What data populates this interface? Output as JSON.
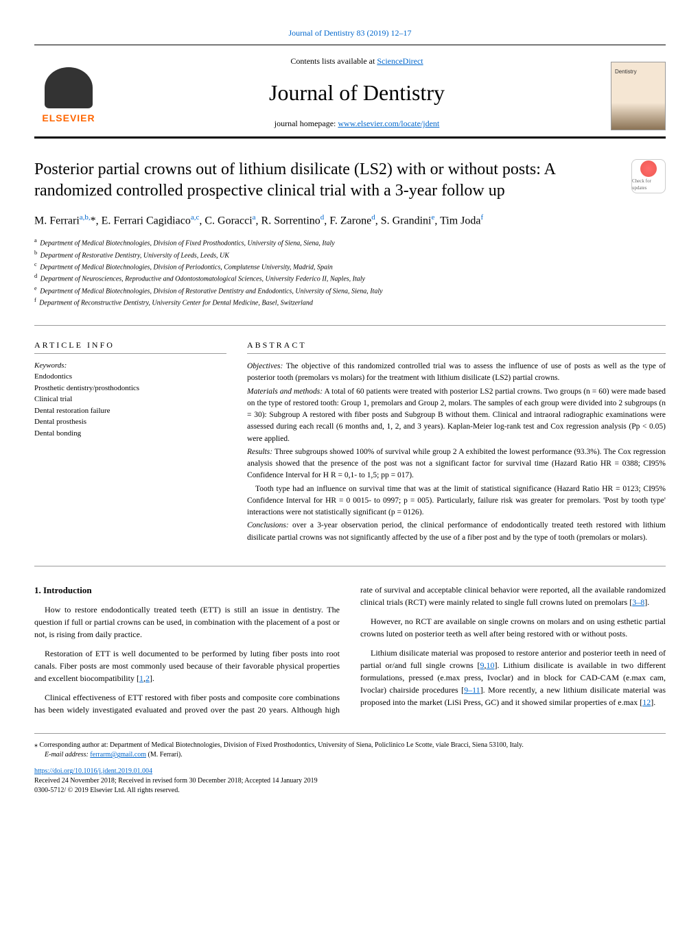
{
  "journal_ref": "Journal of Dentistry 83 (2019) 12–17",
  "header": {
    "contents_prefix": "Contents lists available at ",
    "contents_link": "ScienceDirect",
    "journal_name": "Journal of Dentistry",
    "homepage_prefix": "journal homepage: ",
    "homepage_link": "www.elsevier.com/locate/jdent",
    "publisher": "ELSEVIER"
  },
  "title": "Posterior partial crowns out of lithium disilicate (LS2) with or without posts: A randomized controlled prospective clinical trial with a 3-year follow up",
  "check_updates": "Check for updates",
  "authors_html": "M. Ferrari<sup>a,b,</sup>*, E. Ferrari Cagidiaco<sup>a,c</sup>, C. Goracci<sup>a</sup>, R. Sorrentino<sup>d</sup>, F. Zarone<sup>d</sup>, S. Grandini<sup>e</sup>, Tim Joda<sup>f</sup>",
  "affiliations": [
    "a Department of Medical Biotechnologies, Division of Fixed Prosthodontics, University of Siena, Siena, Italy",
    "b Department of Restorative Dentistry, University of Leeds, Leeds, UK",
    "c Department of Medical Biotechnologies, Division of Periodontics, Complutense University, Madrid, Spain",
    "d Department of Neurosciences, Reproductive and Odontostomatological Sciences, University Federico II, Naples, Italy",
    "e Department of Medical Biotechnologies, Division of Restorative Dentistry and Endodontics, University of Siena, Siena, Italy",
    "f Department of Reconstructive Dentistry, University Center for Dental Medicine, Basel, Switzerland"
  ],
  "article_info": {
    "heading": "ARTICLE INFO",
    "keywords_label": "Keywords:",
    "keywords": [
      "Endodontics",
      "Prosthetic dentistry/prosthodontics",
      "Clinical trial",
      "Dental restoration failure",
      "Dental prosthesis",
      "Dental bonding"
    ]
  },
  "abstract": {
    "heading": "ABSTRACT",
    "objectives_label": "Objectives:",
    "objectives": " The objective of this randomized controlled trial was to assess the influence of use of posts as well as the type of posterior tooth (premolars vs molars) for the treatment with lithium disilicate (LS2) partial crowns.",
    "methods_label": "Materials and methods:",
    "methods": " A total of 60 patients were treated with posterior LS2 partial crowns. Two groups (n = 60) were made based on the type of restored tooth: Group 1, premolars and Group 2, molars. The samples of each group were divided into 2 subgroups (n = 30): Subgroup A restored with fiber posts and Subgroup B without them. Clinical and intraoral radiographic examinations were assessed during each recall (6 months and, 1, 2, and 3 years). Kaplan-Meier log-rank test and Cox regression analysis (Pp < 0.05) were applied.",
    "results_label": "Results:",
    "results1": " Three subgroups showed 100% of survival while group 2 A exhibited the lowest performance (93.3%). The Cox regression analysis showed that the presence of the post was not a significant factor for survival time (Hazard Ratio HR = 0388; CI95% Confidence Interval for H R = 0,1- to 1,5; pp = 017).",
    "results2": "Tooth type had an influence on survival time that was at the limit of statistical significance (Hazard Ratio HR = 0123; CI95% Confidence Interval for HR = 0 0015- to 0997; p = 005). Particularly, failure risk was greater for premolars. 'Post by tooth type' interactions were not statistically significant (p = 0126).",
    "conclusions_label": "Conclusions:",
    "conclusions": " over a 3-year observation period, the clinical performance of endodontically treated teeth restored with lithium disilicate partial crowns was not significantly affected by the use of a fiber post and by the type of tooth (premolars or molars)."
  },
  "intro": {
    "heading": "1. Introduction",
    "p1": "How to restore endodontically treated teeth (ETT) is still an issue in dentistry. The question if full or partial crowns can be used, in combination with the placement of a post or not, is rising from daily practice.",
    "p2_a": "Restoration of ETT is well documented to be performed by luting fiber posts into root canals. Fiber posts are most commonly used because of their favorable physical properties and excellent biocompatibility [",
    "p2_ref1": "1",
    "p2_ref2": "2",
    "p2_b": "].",
    "p3_a": "Clinical effectiveness of ETT restored with fiber posts and composite core combinations has been widely investigated evaluated and proved over the past 20 years. Although high rate of survival and acceptable clinical behavior were reported, all the available randomized clinical trials (RCT) were mainly related to single full crowns luted on premolars [",
    "p3_ref": "3–8",
    "p3_b": "].",
    "p4": "However, no RCT are available on single crowns on molars and on using esthetic partial crowns luted on posterior teeth as well after being restored with or without posts.",
    "p5_a": "Lithium disilicate material was proposed to restore anterior and posterior teeth in need of partial or/and full single crowns [",
    "p5_ref1": "9",
    "p5_ref2": "10",
    "p5_b": "]. Lithium disilicate is available in two different formulations, pressed (e.max press, Ivoclar) and in block for CAD-CAM (e.max cam, Ivoclar) chairside procedures [",
    "p5_ref3": "9–11",
    "p5_c": "]. More recently, a new lithium disilicate material was proposed into the market (LiSi Press, GC) and it showed similar properties of e.max [",
    "p5_ref4": "12",
    "p5_d": "]."
  },
  "footer": {
    "corresponding": "⁎ Corresponding author at: Department of Medical Biotechnologies, Division of Fixed Prosthodontics, University of Siena, Policlinico Le Scotte, viale Bracci, Siena 53100, Italy.",
    "email_label": "E-mail address: ",
    "email": "ferrarm@gmail.com",
    "email_suffix": " (M. Ferrari).",
    "doi": "https://doi.org/10.1016/j.jdent.2019.01.004",
    "received": "Received 24 November 2018; Received in revised form 30 December 2018; Accepted 14 January 2019",
    "copyright": "0300-5712/ © 2019 Elsevier Ltd. All rights reserved."
  }
}
